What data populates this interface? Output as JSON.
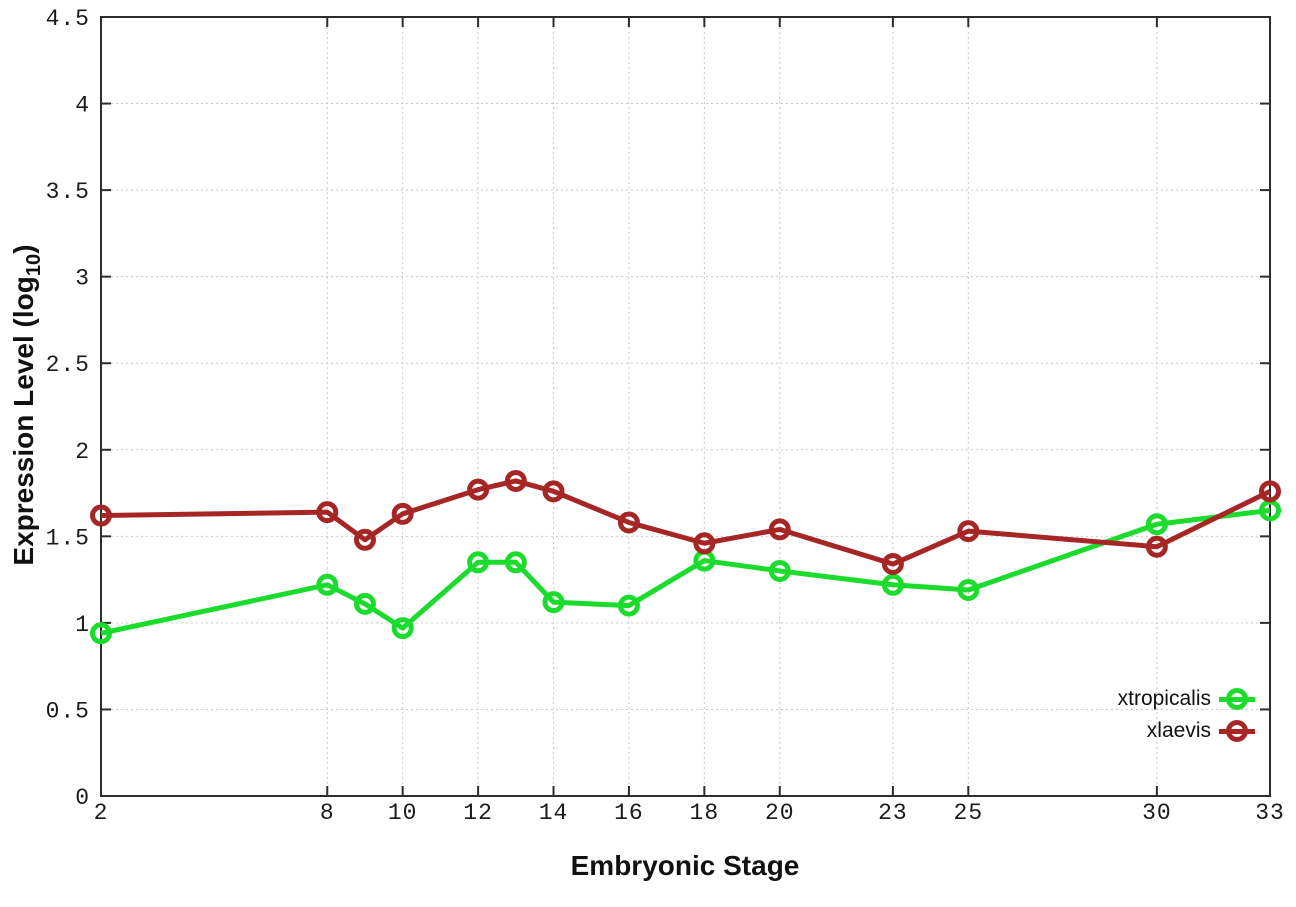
{
  "chart_data": {
    "type": "line",
    "title": "",
    "xlabel": "Embryonic Stage",
    "ylabel": "Expression Level (log10)",
    "ylabel_parts": {
      "pre": "Expression Level (log",
      "sub": "10",
      "post": ")"
    },
    "x": [
      2,
      8,
      9,
      10,
      12,
      13,
      14,
      16,
      18,
      20,
      23,
      25,
      30,
      33
    ],
    "x_tick_labels": [
      2,
      8,
      10,
      12,
      14,
      16,
      18,
      20,
      23,
      25,
      30,
      33
    ],
    "y_ticks": [
      0,
      0.5,
      1,
      1.5,
      2,
      2.5,
      3,
      3.5,
      4,
      4.5
    ],
    "xlim": [
      2,
      33
    ],
    "ylim": [
      0,
      4.5
    ],
    "grid": true,
    "legend_position": "bottom-right",
    "series": [
      {
        "name": "xtropicalis",
        "color": "#1bdc2c",
        "marker": "open-circle",
        "values": [
          0.94,
          1.22,
          1.11,
          0.97,
          1.35,
          1.35,
          1.12,
          1.1,
          1.36,
          1.3,
          1.22,
          1.19,
          1.57,
          1.65
        ]
      },
      {
        "name": "xlaevis",
        "color": "#a62626",
        "marker": "open-circle",
        "values": [
          1.62,
          1.64,
          1.48,
          1.63,
          1.77,
          1.82,
          1.76,
          1.58,
          1.46,
          1.54,
          1.34,
          1.53,
          1.44,
          1.76
        ]
      }
    ],
    "colors": {
      "background": "#ffffff",
      "axis": "#2d2d2d",
      "gridline": "#c9c9c9",
      "tick_label": "#1a1a1a"
    }
  }
}
